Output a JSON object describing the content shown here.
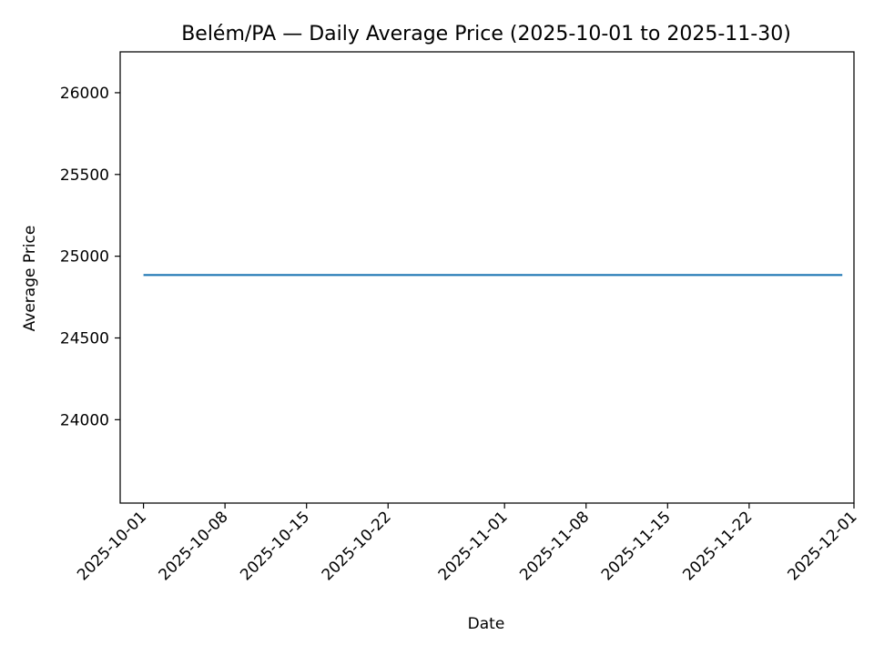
{
  "chart_data": {
    "type": "line",
    "title": "Belém/PA — Daily Average Price (2025-10-01 to 2025-11-30)",
    "xlabel": "Date",
    "ylabel": "Average Price",
    "x_range": [
      "2025-09-29",
      "2025-12-01"
    ],
    "ylim": [
      23490,
      26250
    ],
    "x_ticks": [
      "2025-10-01",
      "2025-10-08",
      "2025-10-15",
      "2025-10-22",
      "2025-11-01",
      "2025-11-08",
      "2025-11-15",
      "2025-11-22",
      "2025-12-01"
    ],
    "y_ticks": [
      24000,
      24500,
      25000,
      25500,
      26000
    ],
    "grid": false,
    "line_color": "#1f77b4",
    "series": [
      {
        "x": [
          "2025-10-01",
          "2025-11-30"
        ],
        "y": [
          24885,
          24885
        ]
      }
    ]
  }
}
